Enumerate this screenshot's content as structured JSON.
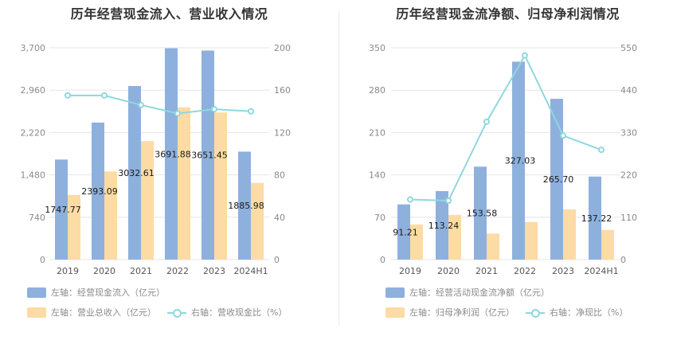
{
  "colors": {
    "bar_primary": "#8eb0dd",
    "bar_secondary": "#fddba4",
    "line": "#8fd8de",
    "grid": "#e6e6e6"
  },
  "charts": [
    {
      "id": "left",
      "title": "历年经营现金流入、营业收入情况",
      "legend": {
        "bar1": "左轴：经营现金流入（亿元）",
        "bar2": "左轴：营业总收入（亿元）",
        "line": "右轴：营收现金比（%）"
      }
    },
    {
      "id": "right",
      "title": "历年经营现金流净额、归母净利润情况",
      "legend": {
        "bar1": "左轴：经营活动现金流净额（亿元）",
        "bar2": "左轴：归母净利润（亿元）",
        "line": "右轴：净现比（%）"
      }
    }
  ],
  "chart_data": [
    {
      "type": "bar",
      "title": "历年经营现金流入、营业收入情况",
      "categories": [
        "2019",
        "2020",
        "2021",
        "2022",
        "2023",
        "2024H1"
      ],
      "left_axis": {
        "ticks": [
          "0",
          "740",
          "1,480",
          "2,220",
          "2,960",
          "3,700"
        ],
        "ylim": [
          0,
          3700
        ]
      },
      "right_axis": {
        "ticks": [
          "0",
          "40",
          "80",
          "120",
          "160",
          "200"
        ],
        "ylim": [
          0,
          200
        ]
      },
      "series": [
        {
          "name": "左轴：经营现金流入（亿元）",
          "axis": "left",
          "values": [
            1747.77,
            2393.09,
            3032.61,
            3691.88,
            3651.45,
            1885.98
          ],
          "labels": [
            "1747.77",
            "2393.09",
            "3032.61",
            "3691.88",
            "3651.45",
            "1885.98"
          ]
        },
        {
          "name": "左轴：营业总收入（亿元）",
          "axis": "left",
          "values": [
            1130,
            1540,
            2070,
            2660,
            2570,
            1340
          ]
        },
        {
          "name": "右轴：营收现金比（%）",
          "axis": "right",
          "chart_type": "line",
          "values": [
            155,
            155,
            146,
            138,
            142,
            140
          ]
        }
      ],
      "grid": true,
      "legend_position": "bottom"
    },
    {
      "type": "bar",
      "title": "历年经营现金流净额、归母净利润情况",
      "categories": [
        "2019",
        "2020",
        "2021",
        "2022",
        "2023",
        "2024H1"
      ],
      "left_axis": {
        "ticks": [
          "0",
          "70",
          "140",
          "210",
          "280",
          "350"
        ],
        "ylim": [
          0,
          350
        ]
      },
      "right_axis": {
        "ticks": [
          "0",
          "110",
          "220",
          "330",
          "440",
          "550"
        ],
        "ylim": [
          0,
          550
        ]
      },
      "series": [
        {
          "name": "左轴：经营活动现金流净额（亿元）",
          "axis": "left",
          "values": [
            91.21,
            113.24,
            153.58,
            327.03,
            265.7,
            137.22
          ],
          "labels": [
            "91.21",
            "113.24",
            "153.58",
            "327.03",
            "265.70",
            "137.22"
          ]
        },
        {
          "name": "左轴：归母净利润（亿元）",
          "axis": "left",
          "values": [
            58,
            74,
            43,
            62,
            83,
            49
          ]
        },
        {
          "name": "右轴：净现比（%）",
          "axis": "right",
          "chart_type": "line",
          "values": [
            156,
            153,
            358,
            530,
            322,
            285
          ]
        }
      ],
      "grid": true,
      "legend_position": "bottom"
    }
  ]
}
